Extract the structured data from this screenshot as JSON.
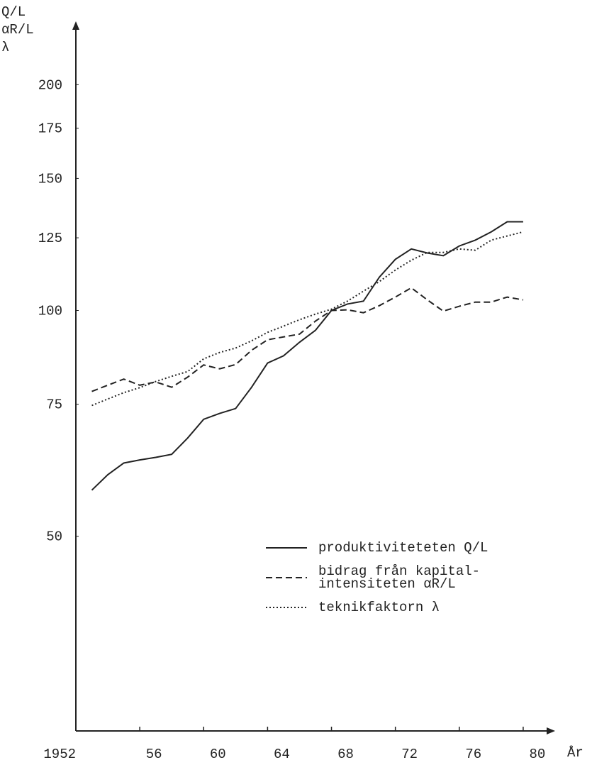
{
  "chart_data": {
    "type": "line",
    "ylabel": [
      "Q/L",
      "αR/L",
      "λ"
    ],
    "xlabel": "År",
    "x": [
      1953,
      1954,
      1955,
      1956,
      1957,
      1958,
      1959,
      1960,
      1961,
      1962,
      1963,
      1964,
      1965,
      1966,
      1967,
      1968,
      1969,
      1970,
      1971,
      1972,
      1973,
      1974,
      1975,
      1976,
      1977,
      1978,
      1979,
      1980
    ],
    "series": [
      {
        "name": "produktiviteteten Q/L",
        "color": "#222222",
        "dash": "solid",
        "values": [
          57.6,
          60.4,
          62.6,
          63.2,
          63.7,
          64.3,
          67.6,
          71.6,
          72.9,
          74.0,
          79.0,
          85.1,
          87.0,
          90.7,
          94.1,
          100,
          102,
          102.9,
          110.8,
          117,
          120.8,
          119.3,
          118.3,
          121.9,
          124.1,
          127.3,
          131.3,
          131.3
        ]
      },
      {
        "name": "bidrag från kapital-\nintensiteten αR/L",
        "color": "#222222",
        "dash": "dashed",
        "values": [
          78.0,
          79.5,
          81.0,
          79.5,
          80.3,
          79.0,
          81.5,
          84.6,
          83.6,
          84.7,
          88.5,
          91.4,
          92.2,
          93.0,
          96.8,
          100,
          100.2,
          99.3,
          101.5,
          104.2,
          107.2,
          103.3,
          99.8,
          101.3,
          102.6,
          102.6,
          104.2,
          103.3
        ]
      },
      {
        "name": "teknikfaktorn λ",
        "color": "#222222",
        "dash": "dotted",
        "values": [
          74.7,
          76.2,
          77.7,
          78.9,
          80.4,
          81.7,
          82.9,
          86.2,
          87.9,
          89.1,
          91.1,
          93.5,
          95.3,
          97.2,
          98.9,
          100.4,
          102.9,
          106.1,
          109.3,
          113.2,
          116.7,
          119.5,
          119.5,
          120.8,
          120.3,
          124.1,
          125.7,
          127.3
        ]
      }
    ],
    "xlim": [
      1952,
      1982
    ],
    "xticks": [
      {
        "value": 1952,
        "label": "1952"
      },
      {
        "value": 1956,
        "label": "56"
      },
      {
        "value": 1960,
        "label": "60"
      },
      {
        "value": 1964,
        "label": "64"
      },
      {
        "value": 1968,
        "label": "68"
      },
      {
        "value": 1972,
        "label": "72"
      },
      {
        "value": 1976,
        "label": "76"
      },
      {
        "value": 1980,
        "label": "80"
      }
    ],
    "ylim": [
      27.5,
      243
    ],
    "yticks": [
      50,
      75,
      100,
      125,
      150,
      175,
      200
    ],
    "log_y": true
  }
}
